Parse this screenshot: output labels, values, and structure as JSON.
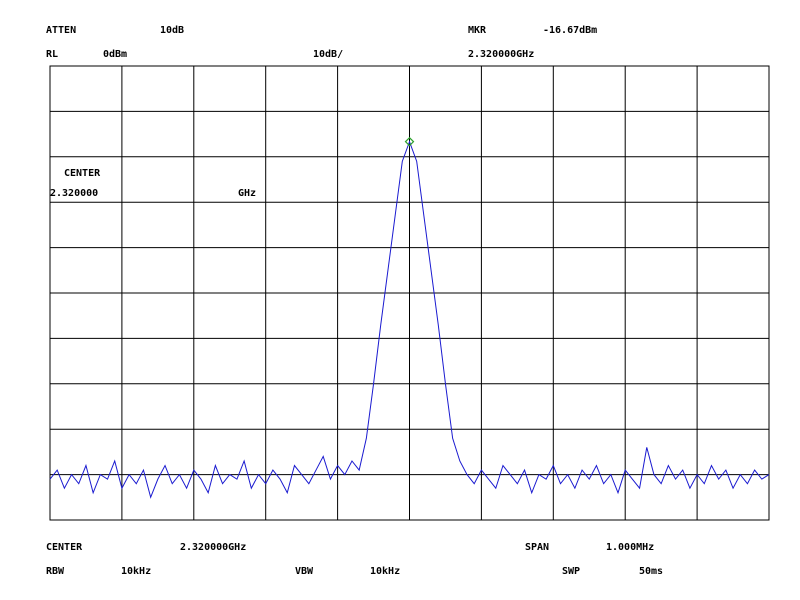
{
  "chart_data": {
    "type": "line",
    "labels": [
      "ATTEN",
      "10dB",
      "MKR",
      "-16.67dBm",
      "RL",
      "0dBm",
      "10dB/",
      "2.320000GHz",
      "CENTER",
      "2.320000",
      "GHz",
      "CENTER",
      "2.320000GHz",
      "SPAN",
      "1.000MHz",
      "RBW",
      "10kHz",
      "VBW",
      "10kHz",
      "SWP",
      "50ms"
    ],
    "x": [
      2319.5,
      2319.51,
      2319.52,
      2319.53,
      2319.54,
      2319.55,
      2319.56,
      2319.57,
      2319.58,
      2319.59,
      2319.6,
      2319.61,
      2319.62,
      2319.63,
      2319.64,
      2319.65,
      2319.66,
      2319.67,
      2319.68,
      2319.69,
      2319.7,
      2319.71,
      2319.72,
      2319.73,
      2319.74,
      2319.75,
      2319.76,
      2319.77,
      2319.78,
      2319.79,
      2319.8,
      2319.81,
      2319.82,
      2319.83,
      2319.84,
      2319.85,
      2319.86,
      2319.87,
      2319.88,
      2319.89,
      2319.9,
      2319.91,
      2319.92,
      2319.93,
      2319.94,
      2319.95,
      2319.96,
      2319.97,
      2319.98,
      2319.99,
      2320.0,
      2320.01,
      2320.02,
      2320.03,
      2320.04,
      2320.05,
      2320.06,
      2320.07,
      2320.08,
      2320.09,
      2320.1,
      2320.11,
      2320.12,
      2320.13,
      2320.14,
      2320.15,
      2320.16,
      2320.17,
      2320.18,
      2320.19,
      2320.2,
      2320.21,
      2320.22,
      2320.23,
      2320.24,
      2320.25,
      2320.26,
      2320.27,
      2320.28,
      2320.29,
      2320.3,
      2320.31,
      2320.32,
      2320.33,
      2320.34,
      2320.35,
      2320.36,
      2320.37,
      2320.38,
      2320.39,
      2320.4,
      2320.41,
      2320.42,
      2320.43,
      2320.44,
      2320.45,
      2320.46,
      2320.47,
      2320.48,
      2320.49,
      2320.5
    ],
    "values": [
      -91,
      -89,
      -93,
      -90,
      -92,
      -88,
      -94,
      -90,
      -91,
      -87,
      -93,
      -90,
      -92,
      -89,
      -95,
      -91,
      -88,
      -92,
      -90,
      -93,
      -89,
      -91,
      -94,
      -88,
      -92,
      -90,
      -91,
      -87,
      -93,
      -90,
      -92,
      -89,
      -91,
      -94,
      -88,
      -90,
      -92,
      -89,
      -86,
      -91,
      -88,
      -90,
      -87,
      -89,
      -82,
      -70,
      -57,
      -45,
      -33,
      -21,
      -16.67,
      -21,
      -33,
      -45,
      -57,
      -70,
      -82,
      -87,
      -90,
      -92,
      -89,
      -91,
      -93,
      -88,
      -90,
      -92,
      -89,
      -94,
      -90,
      -91,
      -88,
      -92,
      -90,
      -93,
      -89,
      -91,
      -88,
      -92,
      -90,
      -94,
      -89,
      -91,
      -93,
      -84,
      -90,
      -92,
      -88,
      -91,
      -89,
      -93,
      -90,
      -92,
      -88,
      -91,
      -89,
      -93,
      -90,
      -92,
      -89,
      -91,
      -90
    ],
    "color": "#1a1ad0",
    "marker_color": "#2aa02a",
    "xlim": [
      2319.5,
      2320.5
    ],
    "ylim": [
      -100,
      0
    ],
    "xticks": [
      2319.5,
      2319.6,
      2319.7,
      2319.8,
      2319.9,
      2320.0,
      2320.1,
      2320.2,
      2320.3,
      2320.4,
      2320.5
    ],
    "yticks": [
      -100,
      -90,
      -80,
      -70,
      -60,
      -50,
      -40,
      -30,
      -20,
      -10,
      0
    ],
    "grid": true
  }
}
